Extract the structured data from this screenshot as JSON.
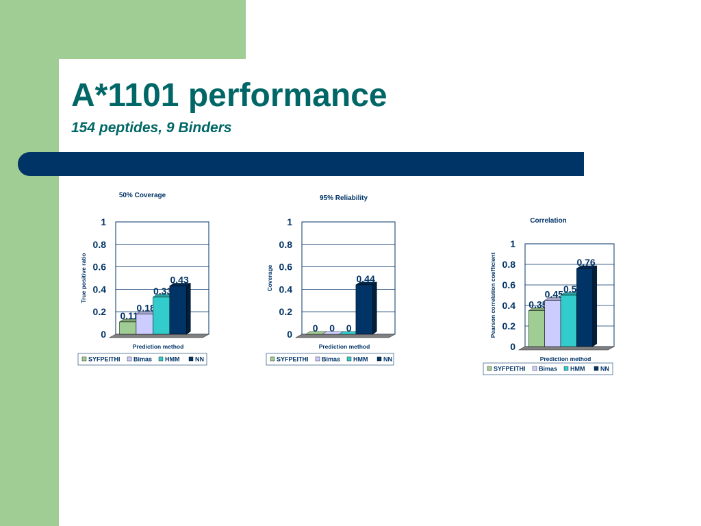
{
  "slide": {
    "title": "A*1101 performance",
    "subtitle": "154 peptides, 9 Binders"
  },
  "colors": {
    "side_band": "#9fcd94",
    "title_text": "#006666",
    "banner": "#003366",
    "series": [
      "#9fcd94",
      "#ccccff",
      "#33cccc",
      "#003366"
    ]
  },
  "chart_data": [
    {
      "type": "bar",
      "title": "50% Coverage",
      "xlabel": "Prediction method",
      "ylabel": "True positive ratio",
      "ylim": [
        0,
        1
      ],
      "yticks": [
        "0",
        "0.2",
        "0.4",
        "0.6",
        "0.8",
        "1"
      ],
      "grid": true,
      "legend_position": "bottom",
      "series": [
        {
          "name": "SYFPEITHI",
          "value": 0.11,
          "label": "0.11"
        },
        {
          "name": "Bimas",
          "value": 0.18,
          "label": "0.18"
        },
        {
          "name": "HMM",
          "value": 0.33,
          "label": "0.33"
        },
        {
          "name": "NN",
          "value": 0.43,
          "label": "0.43"
        }
      ]
    },
    {
      "type": "bar",
      "title": "95% Reliability",
      "xlabel": "Prediction method",
      "ylabel": "Coverage",
      "ylim": [
        0,
        1
      ],
      "yticks": [
        "0",
        "0.2",
        "0.4",
        "0.6",
        "0.8",
        "1"
      ],
      "grid": true,
      "legend_position": "bottom",
      "series": [
        {
          "name": "SYFPEITHI",
          "value": 0,
          "label": "0"
        },
        {
          "name": "Bimas",
          "value": 0,
          "label": "0"
        },
        {
          "name": "HMM",
          "value": 0,
          "label": "0"
        },
        {
          "name": "NN",
          "value": 0.44,
          "label": "0.44"
        }
      ]
    },
    {
      "type": "bar",
      "title": "Correlation",
      "xlabel": "Prediction method",
      "ylabel": "Pearson correlation coefficient",
      "ylim": [
        0,
        1
      ],
      "yticks": [
        "0",
        "0.2",
        "0.4",
        "0.6",
        "0.8",
        "1"
      ],
      "grid": true,
      "legend_position": "bottom",
      "series": [
        {
          "name": "SYFPEITHI",
          "value": 0.35,
          "label": "0.35"
        },
        {
          "name": "Bimas",
          "value": 0.45,
          "label": "0.45"
        },
        {
          "name": "HMM",
          "value": 0.5,
          "label": "0.5"
        },
        {
          "name": "NN",
          "value": 0.76,
          "label": "0.76"
        }
      ]
    }
  ]
}
